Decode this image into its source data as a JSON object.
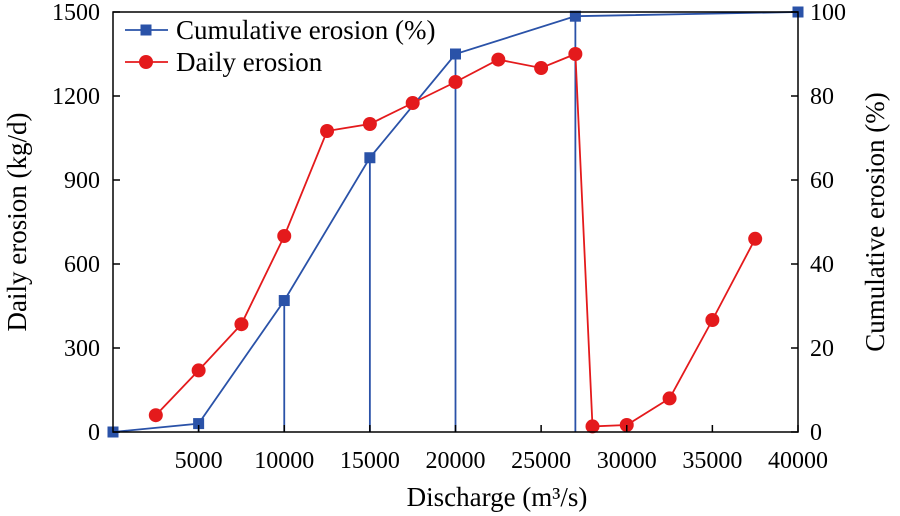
{
  "chart_data": {
    "type": "line",
    "xlabel": "Discharge (m³/s)",
    "ylabel_left": "Daily erosion (kg/d)",
    "ylabel_right": "Cumulative erosion (%)",
    "xlim": [
      0,
      40000
    ],
    "ylim_left": [
      0,
      1500
    ],
    "ylim_right": [
      0,
      100
    ],
    "x_ticks": [
      5000,
      10000,
      15000,
      20000,
      25000,
      30000,
      35000,
      40000
    ],
    "y_left_ticks": [
      0,
      300,
      600,
      900,
      1200,
      1500
    ],
    "y_right_ticks": [
      0,
      20,
      40,
      60,
      80,
      100
    ],
    "legend_position": "top-left",
    "grid": false,
    "series": [
      {
        "name": "Cumulative erosion (%)",
        "axis": "right",
        "color": "#2a52a8",
        "marker": "square",
        "drop_lines": true,
        "x": [
          0,
          5000,
          10000,
          15000,
          20000,
          27000,
          40000
        ],
        "y": [
          0,
          2,
          31.3,
          65.3,
          90,
          99,
          100
        ]
      },
      {
        "name": "Daily erosion",
        "axis": "left",
        "color": "#e41a1c",
        "marker": "circle",
        "x": [
          2500,
          5000,
          7500,
          10000,
          12500,
          15000,
          17500,
          20000,
          22500,
          25000,
          27000,
          28000,
          30000,
          32500,
          35000,
          37500
        ],
        "y": [
          60,
          220,
          385,
          700,
          1075,
          1100,
          1175,
          1250,
          1330,
          1300,
          1350,
          20,
          25,
          120,
          400,
          690
        ]
      }
    ]
  }
}
